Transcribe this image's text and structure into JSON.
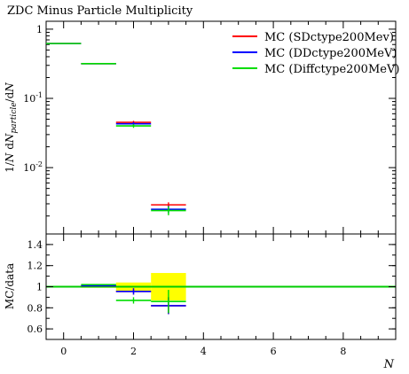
{
  "chart_data": [
    {
      "type": "line",
      "title": "ZDC Minus Particle Multiplicity",
      "ylabel": "1/N dN_particle / dN",
      "yscale": "log",
      "ylim": [
        0.0011,
        1.3
      ],
      "xlim": [
        -0.5,
        9.5
      ],
      "y_ticks": [
        {
          "v": 1,
          "label": "1"
        },
        {
          "v": 0.1,
          "label": "10^-1"
        },
        {
          "v": 0.01,
          "label": "10^-2"
        }
      ],
      "legend_position": "top-right",
      "series": [
        {
          "name": "MC (SDctype200Mev)",
          "color": "#ff0000",
          "points": [
            {
              "x": 0,
              "y": 0.62,
              "err": 0
            },
            {
              "x": 1,
              "y": 0.318,
              "err": 0
            },
            {
              "x": 2,
              "y": 0.045,
              "err": 0.0025
            },
            {
              "x": 3,
              "y": 0.0029,
              "err": 0.00025
            }
          ]
        },
        {
          "name": "MC (DDctype200MeV)",
          "color": "#0000ff",
          "points": [
            {
              "x": 0,
              "y": 0.62,
              "err": 0
            },
            {
              "x": 1,
              "y": 0.318,
              "err": 0
            },
            {
              "x": 2,
              "y": 0.043,
              "err": 0.0025
            },
            {
              "x": 3,
              "y": 0.0025,
              "err": 0.0003
            }
          ]
        },
        {
          "name": "MC (Diffctype200MeV)",
          "color": "#00dd00",
          "points": [
            {
              "x": 0,
              "y": 0.62,
              "err": 0
            },
            {
              "x": 1,
              "y": 0.318,
              "err": 0
            },
            {
              "x": 2,
              "y": 0.04,
              "err": 0.0025
            },
            {
              "x": 3,
              "y": 0.0024,
              "err": 0.00035
            }
          ]
        }
      ]
    },
    {
      "type": "line",
      "ylabel": "MC/data",
      "xlabel": "N",
      "ylim": [
        0.5,
        1.5
      ],
      "xlim": [
        -0.5,
        9.5
      ],
      "y_ticks": [
        {
          "v": 0.6,
          "label": "0.6"
        },
        {
          "v": 0.8,
          "label": "0.8"
        },
        {
          "v": 1.0,
          "label": "1"
        },
        {
          "v": 1.2,
          "label": "1.2"
        },
        {
          "v": 1.4,
          "label": "1.4"
        }
      ],
      "x_ticks": [
        {
          "v": 0,
          "label": "0"
        },
        {
          "v": 2,
          "label": "2"
        },
        {
          "v": 4,
          "label": "4"
        },
        {
          "v": 6,
          "label": "6"
        },
        {
          "v": 8,
          "label": "8"
        }
      ],
      "reference": 1.0,
      "uncertainty_band": [
        {
          "x0": 0.5,
          "x1": 1.5,
          "lo": 0.99,
          "hi": 1.01
        },
        {
          "x0": 1.5,
          "x1": 2.5,
          "lo": 0.96,
          "hi": 1.04
        },
        {
          "x0": 2.5,
          "x1": 3.5,
          "lo": 0.87,
          "hi": 1.13
        }
      ],
      "series": [
        {
          "name": "MC (SDctype200Mev)",
          "color": "#ff0000",
          "points": [
            {
              "x": 1,
              "y": 1.01,
              "err": 0
            },
            {
              "x": 2,
              "y": 0.955,
              "err": 0.03
            },
            {
              "x": 3,
              "y": 0.82,
              "err": 0.08
            }
          ]
        },
        {
          "name": "MC (DDctype200MeV)",
          "color": "#0000ff",
          "points": [
            {
              "x": 1,
              "y": 1.01,
              "err": 0
            },
            {
              "x": 2,
              "y": 0.955,
              "err": 0.03
            },
            {
              "x": 3,
              "y": 0.82,
              "err": 0.08
            }
          ]
        },
        {
          "name": "MC (Diffctype200MeV)",
          "color": "#00dd00",
          "points": [
            {
              "x": 1,
              "y": 1.02,
              "err": 0
            },
            {
              "x": 2,
              "y": 0.87,
              "err": 0.03
            },
            {
              "x": 3,
              "y": 0.86,
              "err": 0.11
            }
          ]
        }
      ]
    }
  ],
  "colors": {
    "band": "#ffff00",
    "reference_line": "#00cc00"
  }
}
